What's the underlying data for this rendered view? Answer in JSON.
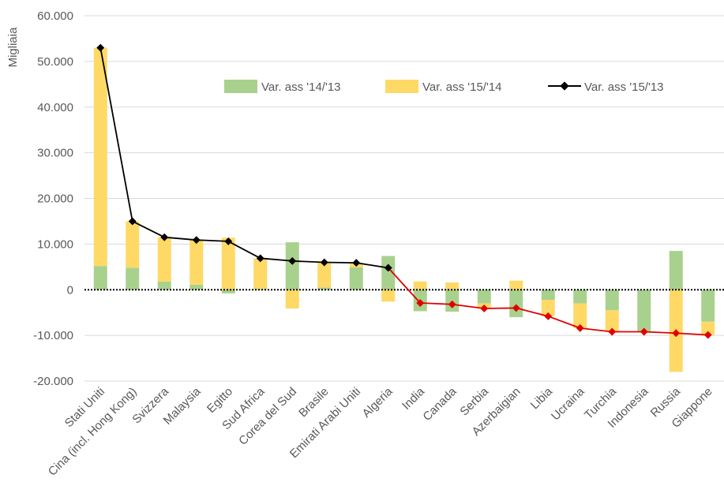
{
  "chart_data": {
    "type": "bar",
    "stacked": true,
    "title": "",
    "ylabel": "Migliaia",
    "xlabel": "",
    "ylim": [
      -20000,
      60000
    ],
    "yticks": [
      60000,
      50000,
      40000,
      30000,
      20000,
      10000,
      0,
      -10000,
      -20000
    ],
    "ytick_labels": [
      "60.000",
      "50.000",
      "40.000",
      "30.000",
      "20.000",
      "10.000",
      "0",
      "-10.000",
      "-20.000"
    ],
    "grid": true,
    "legend_position": "top-right",
    "categories": [
      "Stati Uniti",
      "Cina (incl. Hong Kong)",
      "Svizzera",
      "Malaysia",
      "Egitto",
      "Sud Africa",
      "Corea del Sud",
      "Brasile",
      "Emirati Arabi Uniti",
      "Algeria",
      "India",
      "Canada",
      "Serbia",
      "Azerbaigian",
      "Libia",
      "Ucraina",
      "Turchia",
      "Indonesia",
      "Russia",
      "Giappone"
    ],
    "series": [
      {
        "name": "Var. ass '14/'13",
        "kind": "bar",
        "color": "#a9d18e",
        "values": [
          5200,
          4800,
          1800,
          1100,
          -800,
          200,
          10400,
          500,
          4900,
          7400,
          -4700,
          -4800,
          -3000,
          -6000,
          -2200,
          -3000,
          -4500,
          -9200,
          8500,
          -7000
        ]
      },
      {
        "name": "Var. ass '15/'14",
        "kind": "bar",
        "color": "#ffd966",
        "values": [
          47800,
          10200,
          9700,
          9800,
          11400,
          6700,
          -4100,
          5500,
          1000,
          -2600,
          1800,
          1600,
          -1100,
          2000,
          -3600,
          -5400,
          -4700,
          0,
          -18000,
          -2900
        ]
      },
      {
        "name": "Var. ass '15/'13",
        "kind": "line",
        "color_positive": "#000000",
        "color_negative": "#e00000",
        "values": [
          53000,
          15000,
          11500,
          10900,
          10600,
          6900,
          6300,
          6000,
          5900,
          4800,
          -2900,
          -3200,
          -4100,
          -4000,
          -5800,
          -8400,
          -9200,
          -9200,
          -9500,
          -9900
        ]
      }
    ]
  }
}
